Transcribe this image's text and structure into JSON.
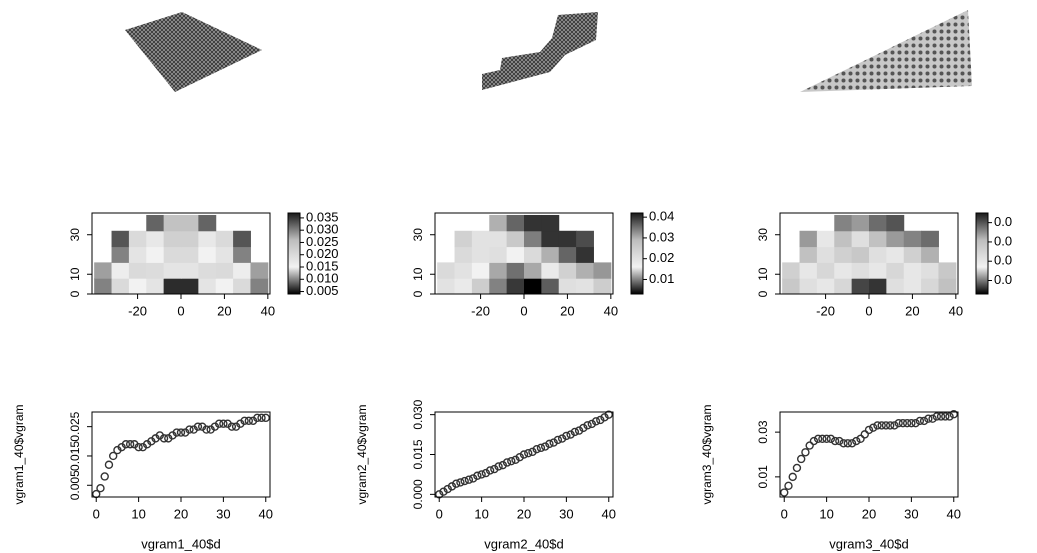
{
  "chart_data": [
    {
      "type": "heatmap",
      "x": [
        -36,
        -28,
        -20,
        -12,
        -4,
        4,
        12,
        20,
        28,
        36
      ],
      "y": [
        4,
        12,
        20,
        28,
        36
      ],
      "z": [
        [
          0.03,
          0.02,
          0.015,
          0.018,
          0.006,
          0.006,
          0.018,
          0.015,
          0.02,
          0.03
        ],
        [
          0.028,
          0.016,
          0.02,
          0.014,
          0.018,
          0.018,
          0.014,
          0.02,
          0.016,
          0.028
        ],
        [
          null,
          0.03,
          0.018,
          0.015,
          0.02,
          0.02,
          0.015,
          0.018,
          0.03,
          null
        ],
        [
          null,
          0.033,
          0.02,
          0.017,
          0.022,
          0.022,
          0.017,
          0.02,
          0.033,
          null
        ],
        [
          null,
          null,
          null,
          0.032,
          0.025,
          0.025,
          0.032,
          null,
          null,
          null
        ]
      ],
      "xlim": [
        -41,
        41
      ],
      "ylim": [
        0,
        41
      ],
      "xticks": [
        -20,
        0,
        20,
        40
      ],
      "yticks": [
        0,
        10,
        30
      ],
      "colors": [
        "#000000",
        "#f2f2f2",
        "#bdbdbd",
        "#1a1a1a"
      ],
      "zlim": [
        0.004,
        0.037
      ],
      "zticks": [
        0.005,
        {
          "value": 0.01,
          "label": "0.010"
        },
        0.015,
        {
          "value": 0.02,
          "label": "0.020"
        },
        0.025,
        {
          "value": 0.03,
          "label": "0.030"
        },
        0.035
      ]
    },
    {
      "type": "heatmap",
      "x": [
        -36,
        -28,
        -20,
        -12,
        -4,
        4,
        12,
        20,
        28,
        36
      ],
      "y": [
        4,
        12,
        20,
        28,
        36
      ],
      "z": [
        [
          0.02,
          0.018,
          0.014,
          0.01,
          0.006,
          0.003,
          0.008,
          0.015,
          0.02,
          0.025
        ],
        [
          0.022,
          0.02,
          0.016,
          0.012,
          0.009,
          0.012,
          0.018,
          0.024,
          0.03,
          0.032
        ],
        [
          null,
          0.022,
          0.02,
          0.015,
          0.016,
          0.022,
          0.03,
          0.036,
          0.04,
          null
        ],
        [
          null,
          0.024,
          0.02,
          0.02,
          0.026,
          0.034,
          0.04,
          0.04,
          0.038,
          null
        ],
        [
          null,
          null,
          null,
          0.03,
          0.036,
          0.04,
          0.04,
          null,
          null,
          null
        ]
      ],
      "xlim": [
        -41,
        41
      ],
      "ylim": [
        0,
        41
      ],
      "xticks": [
        -20,
        0,
        20,
        40
      ],
      "yticks": [
        0,
        10,
        30
      ],
      "colors": [
        "#000000",
        "#f2f2f2",
        "#bdbdbd",
        "#1a1a1a"
      ],
      "zlim": [
        0.003,
        0.042
      ],
      "zticks": [
        0.01,
        0.02,
        0.03,
        0.04
      ]
    },
    {
      "type": "heatmap",
      "x": [
        -36,
        -28,
        -20,
        -12,
        -4,
        4,
        12,
        20,
        28,
        36
      ],
      "y": [
        4,
        12,
        20,
        28,
        36
      ],
      "z": [
        [
          0.028,
          0.022,
          0.02,
          0.024,
          0.007,
          0.006,
          0.022,
          0.02,
          0.024,
          0.03
        ],
        [
          0.026,
          0.02,
          0.024,
          0.02,
          0.022,
          0.02,
          0.024,
          0.02,
          0.022,
          0.028
        ],
        [
          null,
          0.03,
          0.022,
          0.026,
          0.028,
          0.022,
          0.02,
          0.026,
          0.032,
          null
        ],
        [
          null,
          0.034,
          0.02,
          0.03,
          0.022,
          0.03,
          0.034,
          0.036,
          0.038,
          null
        ],
        [
          null,
          null,
          null,
          0.036,
          0.034,
          0.038,
          0.04,
          null,
          null,
          null
        ]
      ],
      "xlim": [
        -41,
        41
      ],
      "ylim": [
        0,
        41
      ],
      "xticks": [
        -20,
        0,
        20,
        40
      ],
      "yticks": [
        0,
        10,
        30
      ],
      "colors": [
        "#000000",
        "#f2f2f2",
        "#bdbdbd",
        "#1a1a1a"
      ],
      "zlim": [
        0.003,
        0.045
      ],
      "zticks": [
        {
          "value": 0.01,
          "label": "0.0"
        },
        {
          "value": 0.02,
          "label": "0.0"
        },
        {
          "value": 0.03,
          "label": "0.0"
        },
        {
          "value": 0.04,
          "label": "0.0"
        }
      ]
    },
    {
      "type": "scatter",
      "x_label": "vgram1_40$d",
      "y_label": "vgram1_40$vgram",
      "x": [
        0,
        1,
        2,
        3,
        4,
        5,
        6,
        7,
        8,
        9,
        10,
        11,
        12,
        13,
        14,
        15,
        16,
        17,
        18,
        19,
        20,
        21,
        22,
        23,
        24,
        25,
        26,
        27,
        28,
        29,
        30,
        31,
        32,
        33,
        34,
        35,
        36,
        37,
        38,
        39,
        40
      ],
      "values": [
        0.002,
        0.004,
        0.008,
        0.012,
        0.015,
        0.017,
        0.018,
        0.019,
        0.019,
        0.019,
        0.018,
        0.018,
        0.019,
        0.02,
        0.021,
        0.022,
        0.021,
        0.021,
        0.022,
        0.023,
        0.023,
        0.023,
        0.024,
        0.024,
        0.025,
        0.025,
        0.024,
        0.024,
        0.025,
        0.026,
        0.026,
        0.026,
        0.025,
        0.025,
        0.026,
        0.027,
        0.027,
        0.027,
        0.028,
        0.028,
        0.028
      ],
      "color": "#333333",
      "xlim": [
        -1,
        41
      ],
      "ylim": [
        0.001,
        0.03
      ],
      "xticks": [
        0,
        10,
        20,
        30,
        40
      ],
      "yticks": [
        0.005,
        0.015,
        0.025
      ]
    },
    {
      "type": "scatter",
      "x_label": "vgram2_40$d",
      "y_label": "vgram2_40$vgram",
      "x": [
        0,
        1,
        2,
        3,
        4,
        5,
        6,
        7,
        8,
        9,
        10,
        11,
        12,
        13,
        14,
        15,
        16,
        17,
        18,
        19,
        20,
        21,
        22,
        23,
        24,
        25,
        26,
        27,
        28,
        29,
        30,
        31,
        32,
        33,
        34,
        35,
        36,
        37,
        38,
        39,
        40
      ],
      "values": [
        0,
        0.001,
        0.002,
        0.003,
        0.004,
        0.0045,
        0.005,
        0.0055,
        0.006,
        0.007,
        0.0075,
        0.008,
        0.009,
        0.0095,
        0.0105,
        0.011,
        0.012,
        0.0125,
        0.013,
        0.014,
        0.015,
        0.0155,
        0.016,
        0.017,
        0.0175,
        0.018,
        0.019,
        0.0195,
        0.0205,
        0.021,
        0.022,
        0.0225,
        0.0235,
        0.024,
        0.025,
        0.026,
        0.0265,
        0.0275,
        0.028,
        0.029,
        0.03
      ],
      "color": "#333333",
      "xlim": [
        -1,
        41
      ],
      "ylim": [
        -0.001,
        0.031
      ],
      "xticks": [
        0,
        10,
        20,
        30,
        40
      ],
      "yticks": [
        {
          "value": 0,
          "label": "0.000"
        },
        0.015,
        {
          "value": 0.03,
          "label": "0.030"
        }
      ]
    },
    {
      "type": "scatter",
      "x_label": "vgram3_40$d",
      "y_label": "vgram3_40$vgram",
      "x": [
        0,
        1,
        2,
        3,
        4,
        5,
        6,
        7,
        8,
        9,
        10,
        11,
        12,
        13,
        14,
        15,
        16,
        17,
        18,
        19,
        20,
        21,
        22,
        23,
        24,
        25,
        26,
        27,
        28,
        29,
        30,
        31,
        32,
        33,
        34,
        35,
        36,
        37,
        38,
        39,
        40
      ],
      "values": [
        0.003,
        0.006,
        0.01,
        0.014,
        0.018,
        0.021,
        0.024,
        0.026,
        0.027,
        0.027,
        0.027,
        0.027,
        0.026,
        0.026,
        0.025,
        0.025,
        0.025,
        0.026,
        0.027,
        0.029,
        0.031,
        0.032,
        0.033,
        0.033,
        0.033,
        0.033,
        0.033,
        0.034,
        0.034,
        0.034,
        0.034,
        0.034,
        0.035,
        0.035,
        0.036,
        0.036,
        0.037,
        0.037,
        0.037,
        0.037,
        0.038
      ],
      "color": "#333333",
      "xlim": [
        -1,
        41
      ],
      "ylim": [
        0.001,
        0.039
      ],
      "xticks": [
        0,
        10,
        20,
        30,
        40
      ],
      "yticks": [
        0.01,
        0.03
      ]
    }
  ]
}
